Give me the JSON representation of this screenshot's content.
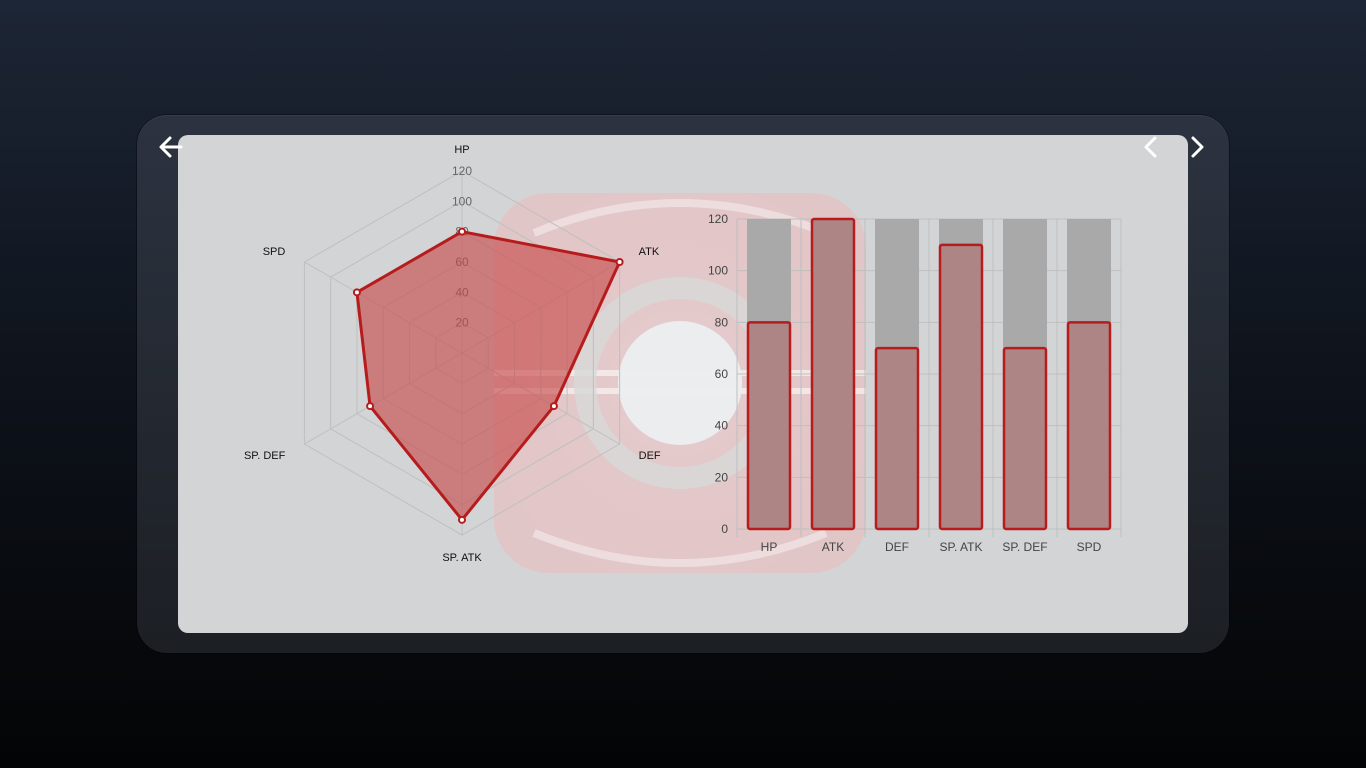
{
  "navigation": {
    "back_icon": "arrow-left-icon",
    "prev_icon": "chevron-left-icon",
    "next_icon": "chevron-right-icon"
  },
  "colors": {
    "accent": "#b71c1c",
    "radar_fill": "#c64747",
    "bar_fill": "#ad8585",
    "bar_track": "#a9a9a9",
    "panel_bg": "#d3d4d6",
    "grid": "#bfbfbf"
  },
  "chart_data": [
    {
      "type": "radar",
      "categories": [
        "HP",
        "ATK",
        "DEF",
        "SP. ATK",
        "SP. DEF",
        "SPD"
      ],
      "values": [
        80,
        120,
        70,
        110,
        70,
        80
      ],
      "r_max": 120,
      "r_ticks": [
        20,
        40,
        60,
        80,
        100,
        120
      ],
      "grid": true
    },
    {
      "type": "bar",
      "categories": [
        "HP",
        "ATK",
        "DEF",
        "SP. ATK",
        "SP. DEF",
        "SPD"
      ],
      "values": [
        80,
        120,
        70,
        110,
        70,
        80
      ],
      "track_max": 120,
      "ylim": [
        0,
        120
      ],
      "y_ticks": [
        0,
        20,
        40,
        60,
        80,
        100,
        120
      ],
      "grid": true
    }
  ]
}
